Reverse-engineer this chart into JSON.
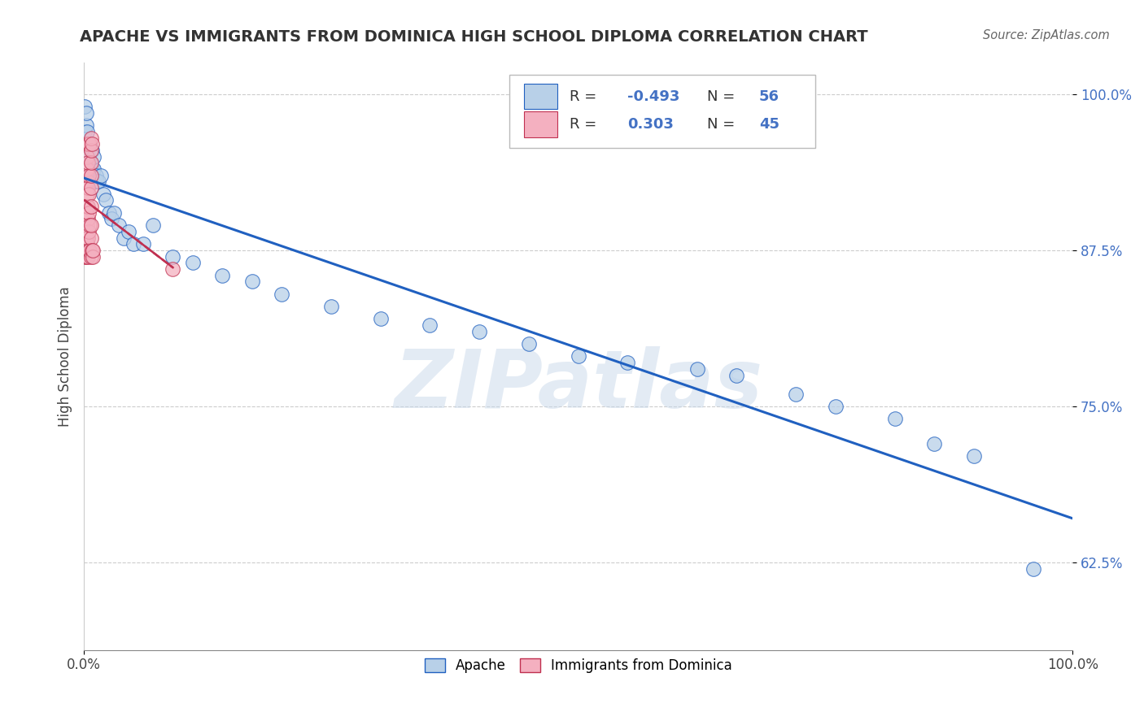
{
  "title": "APACHE VS IMMIGRANTS FROM DOMINICA HIGH SCHOOL DIPLOMA CORRELATION CHART",
  "source": "Source: ZipAtlas.com",
  "ylabel": "High School Diploma",
  "yticks": [
    0.625,
    0.75,
    0.875,
    1.0
  ],
  "ytick_labels": [
    "62.5%",
    "75.0%",
    "87.5%",
    "100.0%"
  ],
  "R_apache": -0.493,
  "N_apache": 56,
  "R_dominica": 0.303,
  "N_dominica": 45,
  "apache_color": "#b8d0e8",
  "dominica_color": "#f4b0c0",
  "trendline_apache_color": "#2060c0",
  "trendline_dominica_color": "#c03050",
  "background_color": "#ffffff",
  "watermark": "ZIPatlas",
  "apache_x": [
    0.001,
    0.001,
    0.002,
    0.002,
    0.002,
    0.003,
    0.003,
    0.003,
    0.004,
    0.004,
    0.005,
    0.005,
    0.006,
    0.006,
    0.007,
    0.008,
    0.008,
    0.009,
    0.01,
    0.01,
    0.011,
    0.012,
    0.013,
    0.015,
    0.017,
    0.02,
    0.022,
    0.025,
    0.028,
    0.03,
    0.035,
    0.04,
    0.045,
    0.05,
    0.06,
    0.07,
    0.09,
    0.11,
    0.14,
    0.17,
    0.2,
    0.25,
    0.3,
    0.35,
    0.4,
    0.45,
    0.5,
    0.55,
    0.62,
    0.66,
    0.72,
    0.76,
    0.82,
    0.86,
    0.9,
    0.96
  ],
  "apache_y": [
    0.97,
    0.99,
    0.955,
    0.975,
    0.985,
    0.945,
    0.96,
    0.97,
    0.94,
    0.955,
    0.935,
    0.95,
    0.945,
    0.96,
    0.935,
    0.94,
    0.955,
    0.935,
    0.94,
    0.95,
    0.93,
    0.935,
    0.93,
    0.93,
    0.935,
    0.92,
    0.915,
    0.905,
    0.9,
    0.905,
    0.895,
    0.885,
    0.89,
    0.88,
    0.88,
    0.895,
    0.87,
    0.865,
    0.855,
    0.85,
    0.84,
    0.83,
    0.82,
    0.815,
    0.81,
    0.8,
    0.79,
    0.785,
    0.78,
    0.775,
    0.76,
    0.75,
    0.74,
    0.72,
    0.71,
    0.62
  ],
  "dominica_x": [
    0.001,
    0.001,
    0.001,
    0.002,
    0.002,
    0.002,
    0.002,
    0.003,
    0.003,
    0.003,
    0.003,
    0.003,
    0.003,
    0.003,
    0.003,
    0.004,
    0.004,
    0.004,
    0.004,
    0.004,
    0.004,
    0.004,
    0.005,
    0.005,
    0.005,
    0.005,
    0.005,
    0.005,
    0.006,
    0.006,
    0.006,
    0.007,
    0.007,
    0.007,
    0.007,
    0.007,
    0.007,
    0.007,
    0.007,
    0.007,
    0.008,
    0.008,
    0.009,
    0.009,
    0.09
  ],
  "dominica_y": [
    0.87,
    0.9,
    0.93,
    0.87,
    0.885,
    0.905,
    0.94,
    0.88,
    0.895,
    0.91,
    0.92,
    0.93,
    0.94,
    0.95,
    0.96,
    0.87,
    0.885,
    0.9,
    0.91,
    0.925,
    0.945,
    0.96,
    0.875,
    0.89,
    0.905,
    0.92,
    0.935,
    0.96,
    0.875,
    0.895,
    0.96,
    0.87,
    0.885,
    0.895,
    0.91,
    0.925,
    0.935,
    0.945,
    0.955,
    0.965,
    0.875,
    0.96,
    0.87,
    0.875,
    0.86
  ],
  "xlim": [
    0.0,
    1.0
  ],
  "ylim": [
    0.555,
    1.025
  ]
}
